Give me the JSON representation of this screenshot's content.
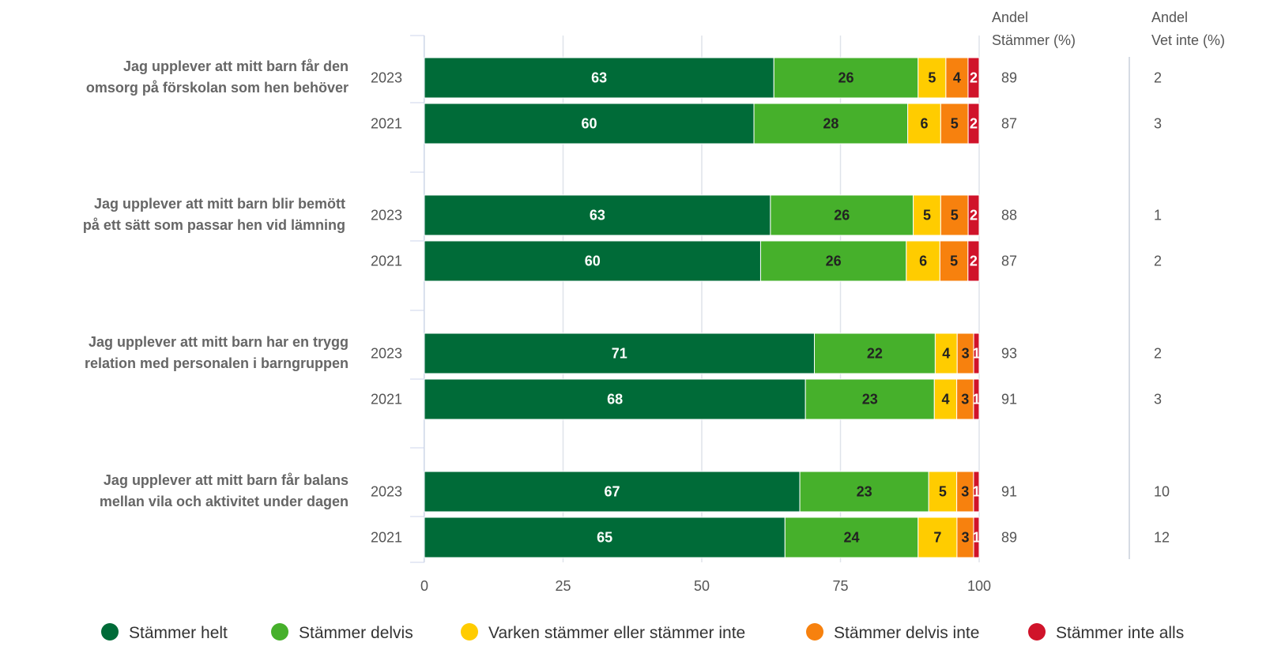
{
  "chart_data": {
    "type": "bar",
    "orientation": "horizontal",
    "stacked": true,
    "xlim": [
      0,
      100
    ],
    "xticks": [
      0,
      25,
      50,
      75,
      100
    ],
    "grid": true,
    "legend_position": "bottom",
    "series": [
      {
        "name": "Stämmer helt",
        "color": "#006b38",
        "label_color": "#ffffff"
      },
      {
        "name": "Stämmer delvis",
        "color": "#46b02b",
        "label_color": "#222222"
      },
      {
        "name": "Varken stämmer eller stämmer inte",
        "color": "#ffcc00",
        "label_color": "#222222"
      },
      {
        "name": "Stämmer delvis inte",
        "color": "#f7810e",
        "label_color": "#222222"
      },
      {
        "name": "Stämmer inte alls",
        "color": "#d0132a",
        "label_color": "#ffffff"
      }
    ],
    "columns": [
      {
        "header_line1": "Andel",
        "header_line2": "Stämmer (%)"
      },
      {
        "header_line1": "Andel",
        "header_line2": "Vet inte (%)"
      }
    ],
    "questions": [
      {
        "label_lines": [
          "Jag upplever att mitt barn får den",
          "omsorg på förskolan som hen behöver"
        ],
        "rows": [
          {
            "year": "2023",
            "values": [
              63,
              26,
              5,
              4,
              2
            ],
            "stammer": "89",
            "vet_inte": "2"
          },
          {
            "year": "2021",
            "values": [
              60,
              28,
              6,
              5,
              2
            ],
            "stammer": "87",
            "vet_inte": "3"
          }
        ]
      },
      {
        "label_lines": [
          "Jag upplever att mitt barn blir bemött",
          "på ett sätt som passar hen vid lämning"
        ],
        "rows": [
          {
            "year": "2023",
            "values": [
              63,
              26,
              5,
              5,
              2
            ],
            "stammer": "88",
            "vet_inte": "1"
          },
          {
            "year": "2021",
            "values": [
              60,
              26,
              6,
              5,
              2
            ],
            "stammer": "87",
            "vet_inte": "2"
          }
        ]
      },
      {
        "label_lines": [
          "Jag upplever att mitt barn har en trygg",
          "relation med personalen i barngruppen"
        ],
        "rows": [
          {
            "year": "2023",
            "values": [
              71,
              22,
              4,
              3,
              1
            ],
            "stammer": "93",
            "vet_inte": "2"
          },
          {
            "year": "2021",
            "values": [
              68,
              23,
              4,
              3,
              1
            ],
            "stammer": "91",
            "vet_inte": "3"
          }
        ]
      },
      {
        "label_lines": [
          "Jag upplever att mitt barn får balans",
          "mellan vila och aktivitet under dagen"
        ],
        "rows": [
          {
            "year": "2023",
            "values": [
              67,
              23,
              5,
              3,
              1
            ],
            "stammer": "91",
            "vet_inte": "10"
          },
          {
            "year": "2021",
            "values": [
              65,
              24,
              7,
              3,
              1
            ],
            "stammer": "89",
            "vet_inte": "12"
          }
        ]
      }
    ]
  }
}
